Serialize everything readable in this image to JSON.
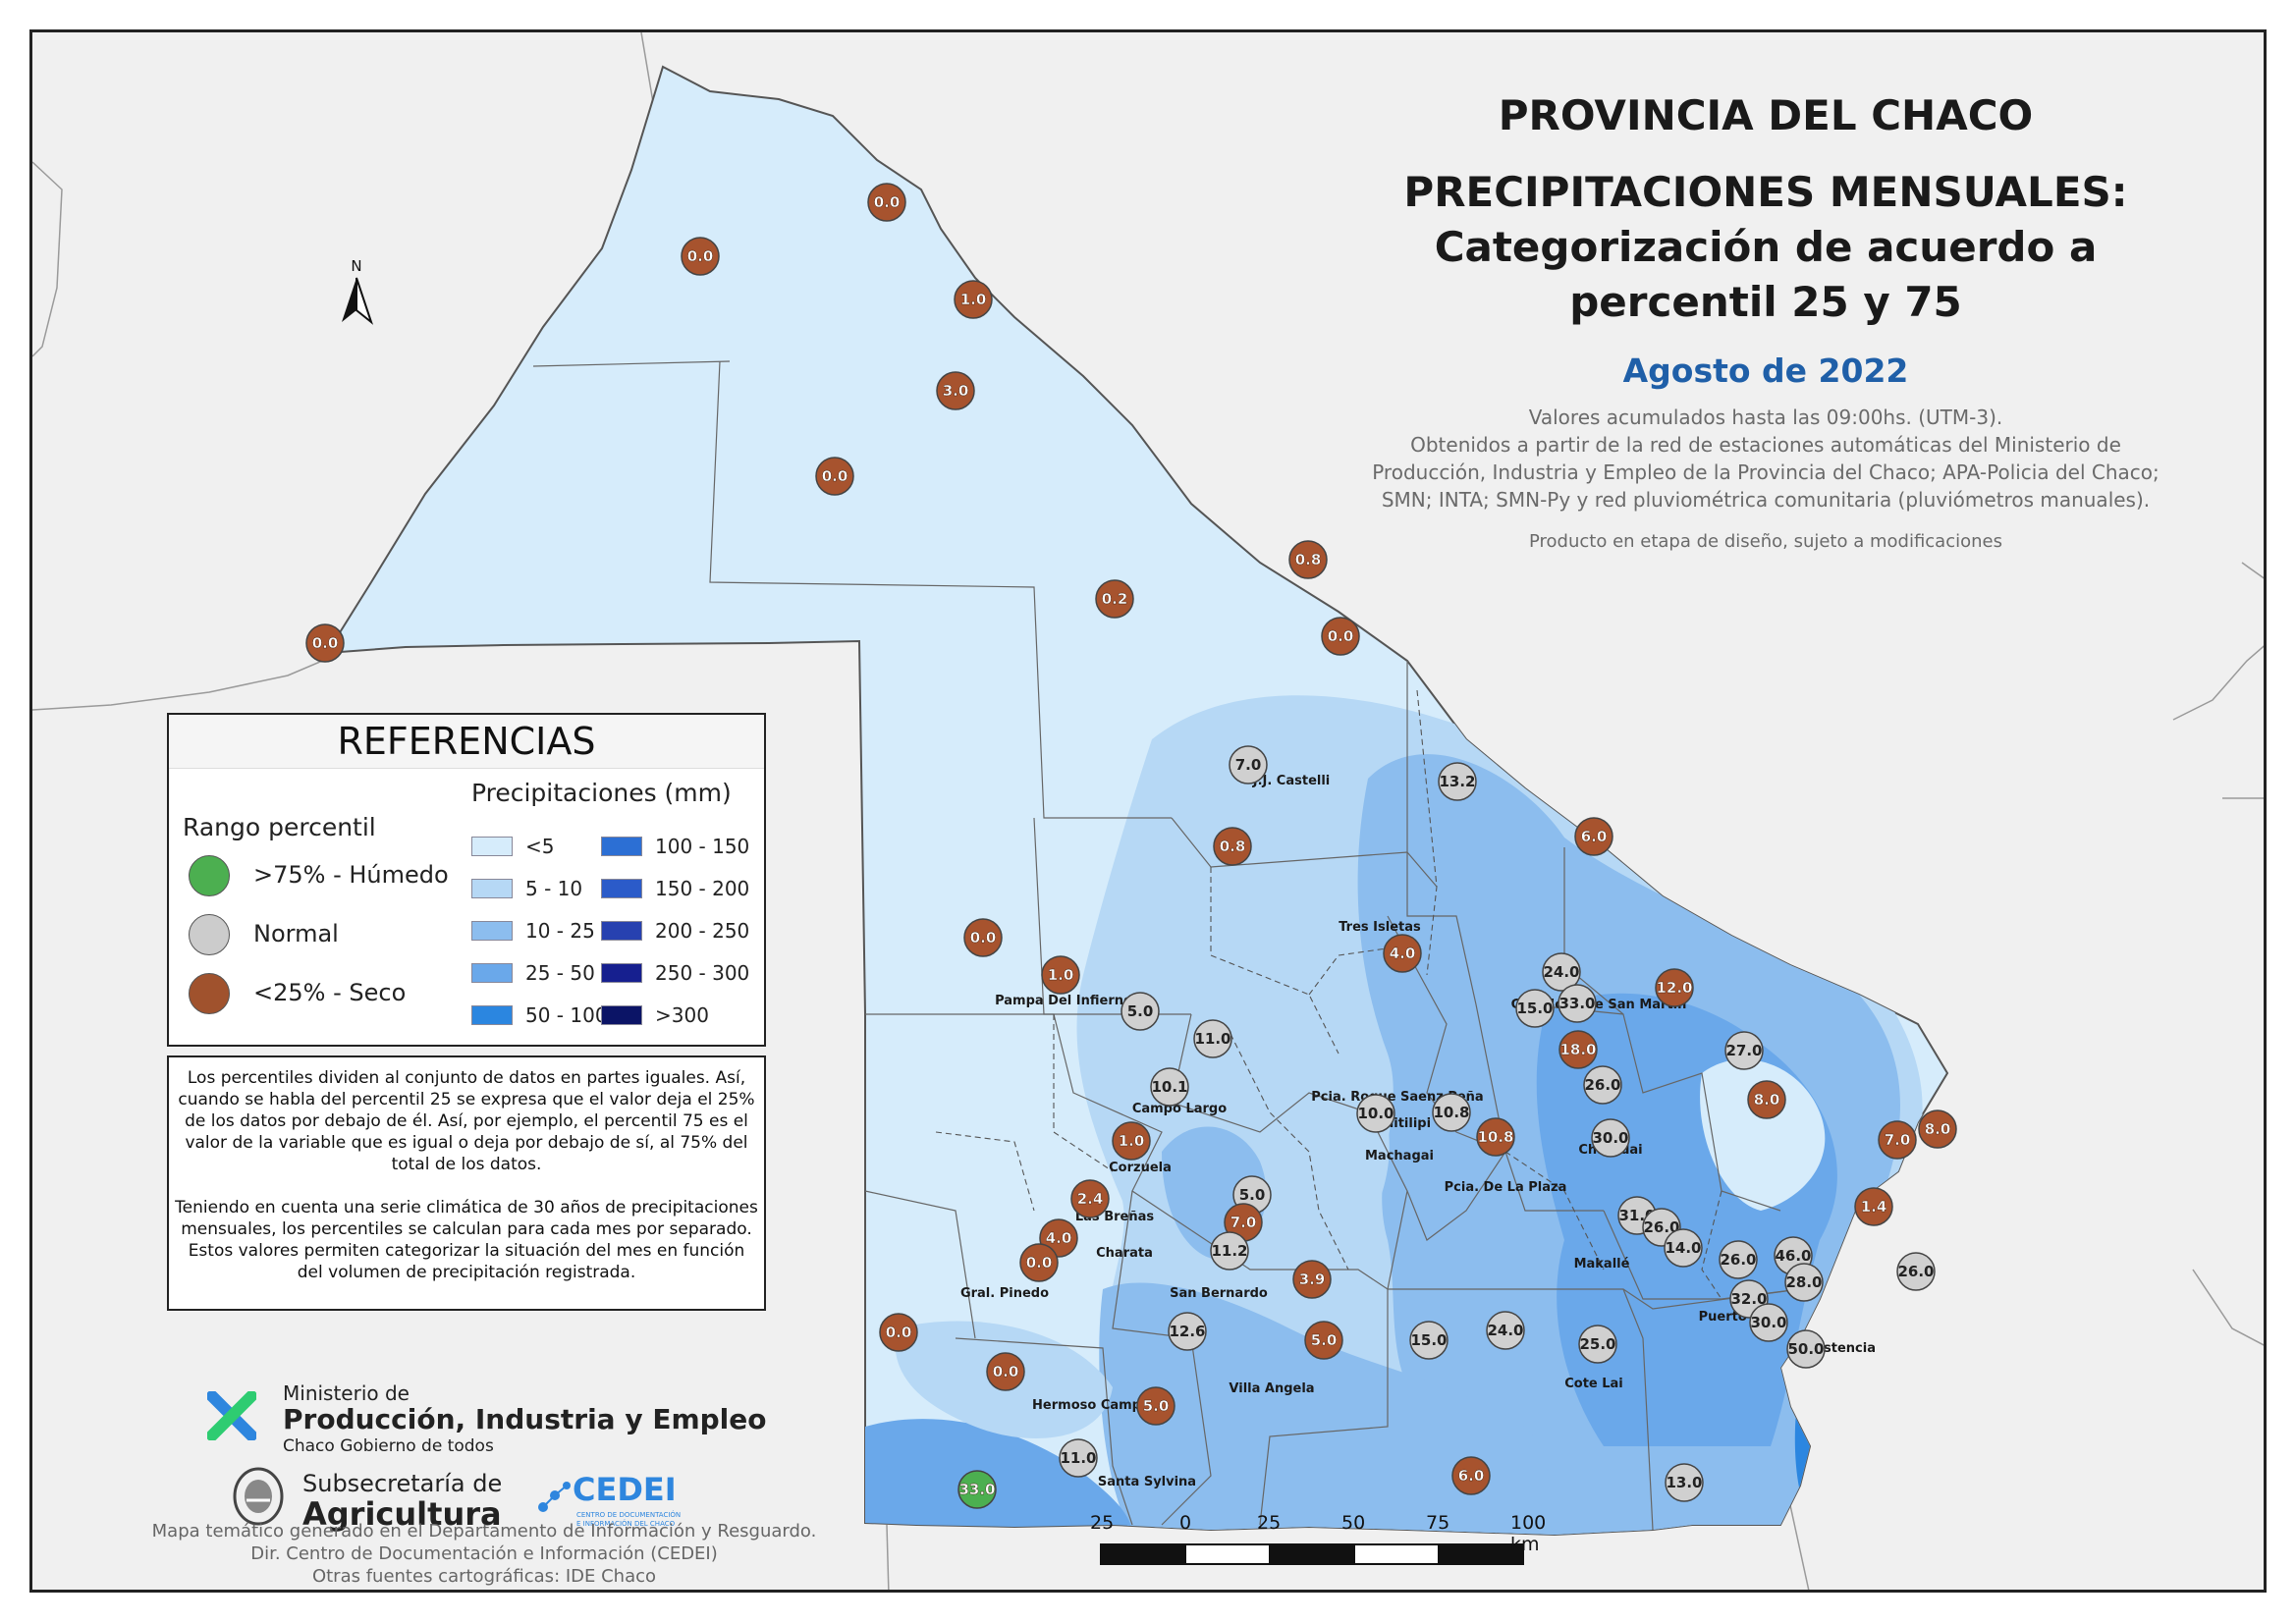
{
  "header": {
    "title_line1": "PROVINCIA DEL CHACO",
    "title_line2": "PRECIPITACIONES MENSUALES:",
    "title_line3": "Categorización de acuerdo a",
    "title_line4": "percentil 25 y 75",
    "month": "Agosto de 2022",
    "notes": [
      "Valores acumulados hasta las 09:00hs. (UTM-3).",
      "Obtenidos a partir de la red de estaciones automáticas del Ministerio de",
      "Producción, Industria y Empleo de la Provincia del Chaco; APA-Policia del Chaco;",
      "SMN; INTA; SMN-Py y red pluviométrica comunitaria (pluviómetros manuales)."
    ],
    "disclaimer": "Producto en etapa de diseño, sujeto a modificaciones"
  },
  "legend": {
    "title": "REFERENCIAS",
    "percentile_title": "Rango percentil",
    "percentile_items": [
      {
        "label": ">75% - Húmedo",
        "color": "#4caf50"
      },
      {
        "label": "Normal",
        "color": "#cccccc"
      },
      {
        "label": "<25% - Seco",
        "color": "#a0522d"
      }
    ],
    "precip_title": "Precipitaciones (mm)",
    "precip_classes": [
      {
        "label": "<5",
        "color": "#d6ecfb"
      },
      {
        "label": "5 - 10",
        "color": "#b6d8f5"
      },
      {
        "label": "10 - 25",
        "color": "#8cbdee"
      },
      {
        "label": "25 - 50",
        "color": "#6aa8ea"
      },
      {
        "label": "50 - 100",
        "color": "#2b86e0"
      },
      {
        "label": "100 - 150",
        "color": "#2c6fd4"
      },
      {
        "label": "150 - 200",
        "color": "#2b5bc9"
      },
      {
        "label": "200 - 250",
        "color": "#2741b0"
      },
      {
        "label": "250 - 300",
        "color": "#161f8f"
      },
      {
        "label": ">300",
        "color": "#0b1466"
      }
    ]
  },
  "info": {
    "paragraph1": "Los percentiles dividen al conjunto de datos en partes iguales. Así, cuando se habla del percentil 25 se expresa que el valor deja el 25% de los datos por debajo de él. Así, por ejemplo, el percentil 75 es el valor de la variable que es igual o deja por debajo de sí, al 75% del total de los datos.",
    "paragraph2": "Teniendo en cuenta una serie climática de 30 años de precipitaciones mensuales, los percentiles se calculan para cada mes por separado. Estos valores permiten categorizar la situación del mes en función del volumen de precipitación registrada."
  },
  "logos": {
    "ministry_line1": "Ministerio de",
    "ministry_line2": "Producción, Industria y Empleo",
    "ministry_line3": "Chaco Gobierno de todos",
    "subsec_line1": "Subsecretaría de",
    "subsec_line2": "Agricultura",
    "cedei": "CEDEI",
    "cedei_sub1": "CENTRO DE DOCUMENTACIÓN",
    "cedei_sub2": "E INFORMACIÓN DEL CHACO"
  },
  "credits": [
    "Mapa temático generado en el Departamento de Información y Resguardo.",
    "Dir. Centro de Documentación e Información (CEDEI)",
    "Otras fuentes cartográficas: IDE Chaco"
  ],
  "north_label": "N",
  "scale_labels": [
    "25",
    "0",
    "25",
    "50",
    "75",
    "100 km"
  ],
  "towns": [
    {
      "name": "J.J. Castelli"
    },
    {
      "name": "Tres Isletas"
    },
    {
      "name": "Pampa Del Infierno"
    },
    {
      "name": "Gral. José De San Martín"
    },
    {
      "name": "Campo Largo"
    },
    {
      "name": "Pcia. Roque Saenz Peña"
    },
    {
      "name": "Quitilipi"
    },
    {
      "name": "Machagai"
    },
    {
      "name": "Corzuela"
    },
    {
      "name": "Las Breñas"
    },
    {
      "name": "Charata"
    },
    {
      "name": "Gral. Pinedo"
    },
    {
      "name": "San Bernardo"
    },
    {
      "name": "Pcia. De La Plaza"
    },
    {
      "name": "Charadai"
    },
    {
      "name": "Makallé"
    },
    {
      "name": "Puerto Tirol"
    },
    {
      "name": "Resistencia"
    },
    {
      "name": "Villa Angela"
    },
    {
      "name": "Hermoso Campo"
    },
    {
      "name": "Cote Lai"
    },
    {
      "name": "Santa Sylvina"
    }
  ],
  "stations": [
    {
      "value": "0.0",
      "category": "dry"
    },
    {
      "value": "0.0",
      "category": "dry"
    },
    {
      "value": "1.0",
      "category": "dry"
    },
    {
      "value": "3.0",
      "category": "dry"
    },
    {
      "value": "0.0",
      "category": "dry"
    },
    {
      "value": "0.0",
      "category": "dry"
    },
    {
      "value": "0.2",
      "category": "dry"
    },
    {
      "value": "0.8",
      "category": "dry"
    },
    {
      "value": "0.0",
      "category": "dry"
    },
    {
      "value": "7.0",
      "category": "normal"
    },
    {
      "value": "13.2",
      "category": "normal"
    },
    {
      "value": "6.0",
      "category": "dry"
    },
    {
      "value": "0.8",
      "category": "dry"
    },
    {
      "value": "4.0",
      "category": "dry"
    },
    {
      "value": "0.0",
      "category": "dry"
    },
    {
      "value": "1.0",
      "category": "dry"
    },
    {
      "value": "5.0",
      "category": "normal"
    },
    {
      "value": "11.0",
      "category": "normal"
    },
    {
      "value": "10.1",
      "category": "normal"
    },
    {
      "value": "24.0",
      "category": "normal"
    },
    {
      "value": "15.0",
      "category": "normal"
    },
    {
      "value": "33.0",
      "category": "normal"
    },
    {
      "value": "12.0",
      "category": "dry"
    },
    {
      "value": "27.0",
      "category": "normal"
    },
    {
      "value": "18.0",
      "category": "dry"
    },
    {
      "value": "26.0",
      "category": "normal"
    },
    {
      "value": "8.0",
      "category": "dry"
    },
    {
      "value": "10.0",
      "category": "normal"
    },
    {
      "value": "10.8",
      "category": "normal"
    },
    {
      "value": "10.8",
      "category": "dry"
    },
    {
      "value": "30.0",
      "category": "normal"
    },
    {
      "value": "7.0",
      "category": "dry"
    },
    {
      "value": "8.0",
      "category": "dry"
    },
    {
      "value": "1.4",
      "category": "dry"
    },
    {
      "value": "1.0",
      "category": "dry"
    },
    {
      "value": "2.4",
      "category": "dry"
    },
    {
      "value": "4.0",
      "category": "dry"
    },
    {
      "value": "0.0",
      "category": "dry"
    },
    {
      "value": "5.0",
      "category": "normal"
    },
    {
      "value": "7.0",
      "category": "dry"
    },
    {
      "value": "11.2",
      "category": "normal"
    },
    {
      "value": "3.9",
      "category": "dry"
    },
    {
      "value": "31.0",
      "category": "normal"
    },
    {
      "value": "26.0",
      "category": "normal"
    },
    {
      "value": "14.0",
      "category": "normal"
    },
    {
      "value": "26.0",
      "category": "normal"
    },
    {
      "value": "46.0",
      "category": "normal"
    },
    {
      "value": "28.0",
      "category": "normal"
    },
    {
      "value": "32.0",
      "category": "normal"
    },
    {
      "value": "26.0",
      "category": "normal"
    },
    {
      "value": "30.0",
      "category": "normal"
    },
    {
      "value": "50.0",
      "category": "normal"
    },
    {
      "value": "0.0",
      "category": "dry"
    },
    {
      "value": "12.6",
      "category": "normal"
    },
    {
      "value": "5.0",
      "category": "dry"
    },
    {
      "value": "15.0",
      "category": "normal"
    },
    {
      "value": "24.0",
      "category": "normal"
    },
    {
      "value": "25.0",
      "category": "normal"
    },
    {
      "value": "0.0",
      "category": "dry"
    },
    {
      "value": "5.0",
      "category": "dry"
    },
    {
      "value": "11.0",
      "category": "normal"
    },
    {
      "value": "6.0",
      "category": "dry"
    },
    {
      "value": "13.0",
      "category": "normal"
    },
    {
      "value": "33.0",
      "category": "wet"
    }
  ],
  "category_colors": {
    "dry": "#a7532e",
    "normal": "#d0d0d0",
    "wet": "#4caf50"
  }
}
